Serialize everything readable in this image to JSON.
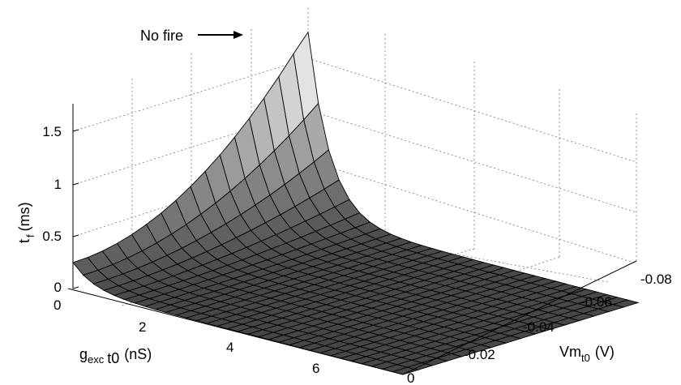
{
  "chart_data": {
    "type": "surface",
    "title": "",
    "xlabel": {
      "base": "g",
      "sub": "exc",
      "sub2": "t0",
      "unit": "(nS)"
    },
    "ylabel": {
      "base": "Vm",
      "sub": "t0",
      "unit": "(V)"
    },
    "zlabel": {
      "base": "t",
      "sub": "f",
      "unit": "(ms)"
    },
    "x_ticks": [
      "0",
      "2",
      "4",
      "6"
    ],
    "y_ticks": [
      "0",
      "-0.02",
      "-0.04",
      "-0.06",
      "-0.08"
    ],
    "z_ticks": [
      "0",
      "0.5",
      "1",
      "1.5"
    ],
    "xlim": [
      0,
      8
    ],
    "ylim": [
      -0.085,
      0
    ],
    "zlim": [
      0,
      1.8
    ],
    "annotation": "No fire",
    "surface_description": "t_f is about 0 ms for most of the domain; it rises steeply toward high values near g_exc = 0 and more negative Vm",
    "colormap": "gray"
  }
}
